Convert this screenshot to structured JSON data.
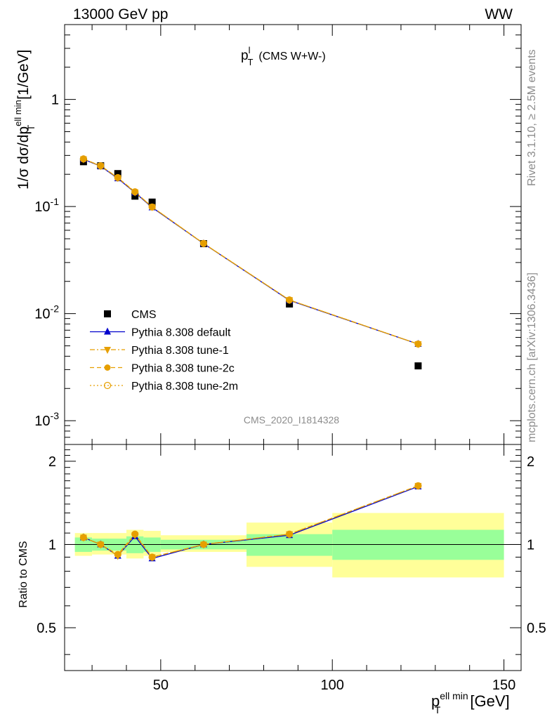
{
  "header": {
    "left": "13000 GeV pp",
    "right": "WW"
  },
  "plot_title": {
    "main": "p",
    "sup": "l",
    "sub": "T",
    "suffix": "(CMS W+W-)"
  },
  "side_labels": {
    "rivet": "Rivet 3.1.10, ≥ 2.5M events",
    "mcplots": "mcplots.cern.ch [arXiv:1306.3436]"
  },
  "watermark": "CMS_2020_I1814328",
  "y_axis_label": {
    "text1": "1/σ dσ/dp",
    "sup": "ell min",
    "sub": "T",
    "text2": " [1/GeV]"
  },
  "ratio_axis_label": "Ratio to CMS",
  "x_axis_label": {
    "main": "p",
    "sup": "ell min",
    "sub": "T",
    "unit": " [GeV]"
  },
  "colors": {
    "data": "#000000",
    "default": "#0000cc",
    "tune": "#e69f00",
    "band_inner": "#99ff99",
    "band_outer": "#ffff99"
  },
  "chart_data": {
    "type": "scatter",
    "xlim": [
      22,
      155
    ],
    "main_ylim": [
      0.0006,
      5
    ],
    "main_yscale": "log",
    "ratio_ylim": [
      0.35,
      2.3
    ],
    "ratio_yscale": "log",
    "x_ticks": [
      "50",
      "100",
      "150"
    ],
    "y_ticks": [
      {
        "mant": "1",
        "exp": ""
      },
      {
        "mant": "10",
        "exp": "-1"
      },
      {
        "mant": "10",
        "exp": "-2"
      },
      {
        "mant": "10",
        "exp": "-3"
      }
    ],
    "ratio_ticks": [
      "0.5",
      "1",
      "2"
    ],
    "data": {
      "name": "CMS",
      "x": [
        27.5,
        32.5,
        37.5,
        42.5,
        47.5,
        62.5,
        87.5,
        125
      ],
      "y": [
        0.262,
        0.24,
        0.203,
        0.125,
        0.11,
        0.045,
        0.0123,
        0.00325
      ],
      "xerr": [
        [
          25,
          30
        ],
        [
          30,
          35
        ],
        [
          35,
          40
        ],
        [
          40,
          45
        ],
        [
          45,
          50
        ],
        [
          50,
          75
        ],
        [
          75,
          100
        ],
        [
          100,
          150
        ]
      ],
      "ratio_band_inner": [
        [
          0.94,
          1.06
        ],
        [
          0.95,
          1.05
        ],
        [
          0.95,
          1.05
        ],
        [
          0.93,
          1.07
        ],
        [
          0.94,
          1.06
        ],
        [
          0.96,
          1.04
        ],
        [
          0.91,
          1.09
        ],
        [
          0.88,
          1.13
        ]
      ],
      "ratio_band_outer": [
        [
          0.91,
          1.1
        ],
        [
          0.92,
          1.1
        ],
        [
          0.92,
          1.1
        ],
        [
          0.89,
          1.13
        ],
        [
          0.91,
          1.12
        ],
        [
          0.94,
          1.08
        ],
        [
          0.83,
          1.2
        ],
        [
          0.76,
          1.3
        ]
      ]
    },
    "series": [
      {
        "name": "Pythia 8.308 default",
        "marker": "triangle-up",
        "line": "solid",
        "color": "#0000cc",
        "y": [
          0.276,
          0.238,
          0.183,
          0.135,
          0.098,
          0.045,
          0.0133,
          0.0052
        ],
        "ratio": [
          1.06,
          1.0,
          0.91,
          1.07,
          0.89,
          1.0,
          1.08,
          1.62
        ]
      },
      {
        "name": "Pythia 8.308 tune-1",
        "marker": "triangle-down",
        "line": "dashdot",
        "color": "#e69f00",
        "y": [
          0.277,
          0.239,
          0.185,
          0.136,
          0.099,
          0.0451,
          0.0134,
          0.0052
        ],
        "ratio": [
          1.06,
          1.0,
          0.91,
          1.08,
          0.9,
          1.0,
          1.09,
          1.63
        ]
      },
      {
        "name": "Pythia 8.308 tune-2c",
        "marker": "circle",
        "line": "dashed",
        "color": "#e69f00",
        "y": [
          0.278,
          0.24,
          0.186,
          0.137,
          0.099,
          0.0452,
          0.0134,
          0.0052
        ],
        "ratio": [
          1.06,
          1.0,
          0.92,
          1.09,
          0.9,
          1.0,
          1.09,
          1.63
        ]
      },
      {
        "name": "Pythia 8.308 tune-2m",
        "marker": "circle-open",
        "line": "dotted",
        "color": "#e69f00",
        "y": [
          0.278,
          0.24,
          0.186,
          0.137,
          0.099,
          0.0452,
          0.0134,
          0.0052
        ],
        "ratio": [
          1.06,
          1.0,
          0.92,
          1.09,
          0.9,
          1.0,
          1.09,
          1.63
        ]
      }
    ]
  }
}
